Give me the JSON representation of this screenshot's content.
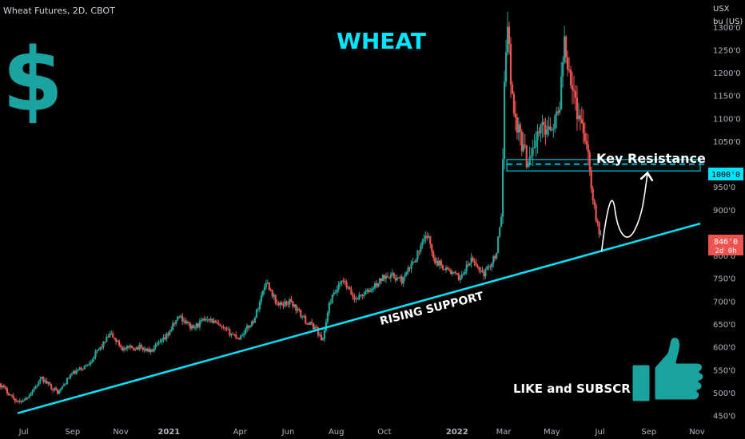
{
  "header": {
    "symbol_label": "Wheat Futures, 2D, CBOT"
  },
  "axis_unit": {
    "line1": "USX",
    "line2": "bu (US)"
  },
  "current_price": {
    "value_label": "846'0",
    "countdown_label": "2d 0h"
  },
  "key_level": {
    "value_label": "1000'0",
    "text": "Key Resistance"
  },
  "annotations": {
    "title": "WHEAT",
    "support_label": "RISING SUPPORT",
    "cta_label": "LIKE and SUBSCRIBE",
    "dollar_sign": "$"
  },
  "icons": {
    "dollar": "dollar-sign-icon",
    "thumbs_up": "thumbs-up-icon"
  },
  "colors": {
    "background": "#000000",
    "bull": "#26a69a",
    "bear": "#ef5350",
    "accent_cyan": "#00e5ff",
    "teal": "#1aa3a0",
    "text": "#ffffff",
    "axis_text": "#b2b5be",
    "last_price": "#ef5350"
  },
  "chart_data": {
    "type": "candlestick",
    "price_unit": "USX / bu (US)",
    "y_ticks": [
      "1300'0",
      "1250'0",
      "1200'0",
      "1150'0",
      "1100'0",
      "1050'0",
      "950'0",
      "900'0",
      "800'0",
      "750'0",
      "700'0",
      "650'0",
      "600'0",
      "550'0",
      "500'0",
      "450'0"
    ],
    "y_tick_values": [
      1300,
      1250,
      1200,
      1150,
      1100,
      1050,
      950,
      900,
      800,
      750,
      700,
      650,
      600,
      550,
      500,
      450
    ],
    "x_ticks": [
      {
        "label": "Jul",
        "date": "2020-07-01"
      },
      {
        "label": "Sep",
        "date": "2020-09-01"
      },
      {
        "label": "Nov",
        "date": "2020-11-01"
      },
      {
        "label": "2021",
        "date": "2021-01-01",
        "bold": true
      },
      {
        "label": "Apr",
        "date": "2021-04-01"
      },
      {
        "label": "Jun",
        "date": "2021-06-01"
      },
      {
        "label": "Aug",
        "date": "2021-08-01"
      },
      {
        "label": "Oct",
        "date": "2021-10-01"
      },
      {
        "label": "2022",
        "date": "2022-01-01",
        "bold": true
      },
      {
        "label": "Mar",
        "date": "2022-03-01"
      },
      {
        "label": "May",
        "date": "2022-05-01"
      },
      {
        "label": "Jul",
        "date": "2022-07-01"
      },
      {
        "label": "Sep",
        "date": "2022-09-01"
      },
      {
        "label": "Nov",
        "date": "2022-11-01"
      }
    ],
    "x_range": [
      "2020-06-01",
      "2022-11-05"
    ],
    "ylim": [
      437,
      1345
    ],
    "price_path": [
      [
        "2020-06-01",
        520
      ],
      [
        "2020-06-25",
        478
      ],
      [
        "2020-07-05",
        488
      ],
      [
        "2020-07-25",
        530
      ],
      [
        "2020-08-15",
        500
      ],
      [
        "2020-08-30",
        538
      ],
      [
        "2020-09-20",
        560
      ],
      [
        "2020-10-20",
        628
      ],
      [
        "2020-11-05",
        595
      ],
      [
        "2020-11-25",
        600
      ],
      [
        "2020-12-10",
        590
      ],
      [
        "2020-12-28",
        618
      ],
      [
        "2021-01-15",
        668
      ],
      [
        "2021-02-01",
        640
      ],
      [
        "2021-02-20",
        665
      ],
      [
        "2021-03-10",
        640
      ],
      [
        "2021-04-01",
        620
      ],
      [
        "2021-04-20",
        660
      ],
      [
        "2021-05-05",
        745
      ],
      [
        "2021-05-20",
        690
      ],
      [
        "2021-06-05",
        700
      ],
      [
        "2021-06-25",
        655
      ],
      [
        "2021-07-08",
        640
      ],
      [
        "2021-07-15",
        610
      ],
      [
        "2021-07-25",
        700
      ],
      [
        "2021-08-10",
        745
      ],
      [
        "2021-08-25",
        705
      ],
      [
        "2021-09-15",
        725
      ],
      [
        "2021-10-05",
        760
      ],
      [
        "2021-10-25",
        745
      ],
      [
        "2021-11-10",
        795
      ],
      [
        "2021-11-25",
        845
      ],
      [
        "2021-12-05",
        790
      ],
      [
        "2021-12-20",
        770
      ],
      [
        "2022-01-05",
        750
      ],
      [
        "2022-01-20",
        790
      ],
      [
        "2022-02-05",
        760
      ],
      [
        "2022-02-20",
        800
      ],
      [
        "2022-02-28",
        890
      ],
      [
        "2022-03-03",
        1200
      ],
      [
        "2022-03-07",
        1320
      ],
      [
        "2022-03-12",
        1150
      ],
      [
        "2022-03-20",
        1080
      ],
      [
        "2022-03-31",
        1010
      ],
      [
        "2022-04-20",
        1080
      ],
      [
        "2022-05-10",
        1100
      ],
      [
        "2022-05-18",
        1275
      ],
      [
        "2022-06-01",
        1130
      ],
      [
        "2022-06-15",
        1060
      ],
      [
        "2022-06-22",
        930
      ],
      [
        "2022-07-01",
        846
      ]
    ],
    "last_price": 846,
    "horizontal_line": 1000,
    "resistance_zone": {
      "start": "2022-03-05",
      "end": "2022-11-05",
      "low": 985,
      "high": 1010
    },
    "rising_support": {
      "start": [
        "2020-06-01",
        455
      ],
      "end": [
        "2022-11-05",
        870
      ]
    },
    "projection_path": [
      [
        "2022-07-03",
        808
      ],
      [
        "2022-07-20",
        900
      ],
      [
        "2022-08-08",
        856
      ],
      [
        "2022-08-30",
        978
      ]
    ]
  }
}
